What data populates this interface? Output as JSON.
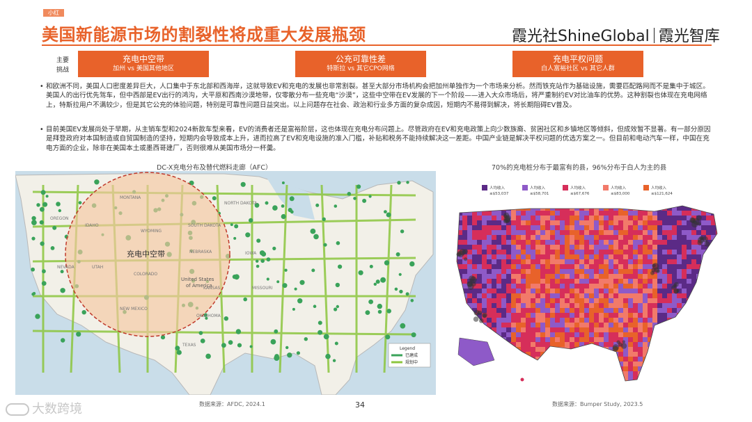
{
  "header": {
    "tag": "小红",
    "title": "美国新能源市场的割裂性将成重大发展瓶颈",
    "brand_left": "霞光社",
    "brand_mid": "ShineGlobal",
    "brand_right": "霞光智库"
  },
  "challenges": {
    "label_line1": "主要",
    "label_line2": "挑战",
    "items": [
      {
        "heading": "充电中空带",
        "sub": "加州 vs 美国其他地区"
      },
      {
        "heading": "公充可靠性差",
        "sub": "特斯拉 vs 其它CPO网络"
      },
      {
        "heading": "充电平权问题",
        "sub": "白人富裕社区 vs 其它人群"
      }
    ]
  },
  "paragraphs": [
    "和欧洲不同，美国人口密度差异巨大，人口集中于东北部和西海岸，这就导致EV和充电的发展也非常割裂。甚至大部分市场机构会把加州单独作为一个市场来分析。然而铁充站作为基础设施，需要匹配路网而不是集中于城区。美国人的出行优先驾车，但中西部是EV出行的鸿沟，大平原和西南沙漠地带，仅零散分布一些充电“沙漠”，这些中空带在EV发展的下一个阶段——进入大众市场后，将严重制约EV对比油车的优势。这种割裂也体现在充电网络上，特斯拉用户不满较少，但是其它公充的体验问题，特别是可靠性问题日益突出。以上问题存在社会、政治和行业多方面的复杂成因，短期内不易得到解决，将长期阻碍EV普及。",
    "目前美国EV发展尚处于早期，从主销车型和2024新款车型来看，EV的消费者还是富裕阶层，这也体现在充电分布问题上。尽管政府在EV和充电政策上向少数族裔、贫困社区和乡镇地区等倾斜，但成效暂不显著。有一部分原因是拜登政府对本国制造或自贸国制造的坚持，短期内会导致成本上升，进而拉高了EV和充电设施的准入门槛，补贴和税务不能持续解决这一差距。中国产业链是解决平权问题的优选方案之一。但目前和电动汽车一样，中国在充电方面的企业，除非在美国本土或墨西哥建厂，否则很难从美国市场分一杯羹。"
  ],
  "map_left": {
    "title": "DC-X充电分布及替代燃料走廊（AFC）",
    "circle_label": "充电中空带",
    "country_label_1": "United States",
    "country_label_2": "of America",
    "states": [
      "MONTANA",
      "NORTH DAKOTA",
      "SOUTH DAKOTA",
      "WYOMING",
      "NEBRASKA",
      "KANSAS",
      "TEXAS",
      "OREGON",
      "IDAHO",
      "NEVADA",
      "UTAH",
      "COLORADO",
      "NEW MEXICO",
      "OKLAHOMA",
      "IOWA",
      "MISSOURI"
    ],
    "legend_title": "Legend",
    "legend_items": [
      "已建成",
      "规划中"
    ],
    "source": "数据来源：AFDC, 2024.1",
    "colors": {
      "land": "#f2f0e8",
      "water": "#c9dde9",
      "circle": "#f4c8a2",
      "circle_stroke": "#c0392b",
      "node": "#3aa35a",
      "corridor": "#8cc63f"
    }
  },
  "map_right": {
    "title": "70%的充电桩分布于最富有的县，96%分布于白人为主的县",
    "legend": [
      {
        "label": "人均收入",
        "value": "≤$53,037",
        "color": "#5b2a86"
      },
      {
        "label": "人均收入",
        "value": "≤$58,701",
        "color": "#8e5ac8"
      },
      {
        "label": "人均收入",
        "value": "≤$67,676",
        "color": "#d62e5a"
      },
      {
        "label": "人均收入",
        "value": "≤$83,000",
        "color": "#f27a6a"
      },
      {
        "label": "人均收入",
        "value": "≤$121,624",
        "color": "#e8622a"
      }
    ],
    "source": "数据来源：Bumper Study, 2023.5"
  },
  "footer": {
    "page_number": "34",
    "watermark": "大数跨境"
  }
}
